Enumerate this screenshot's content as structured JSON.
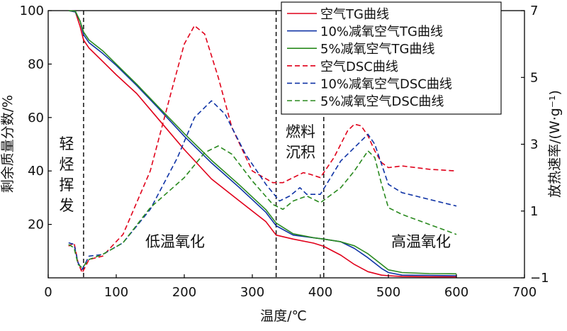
{
  "chart_data": {
    "type": "line",
    "xlabel": "温度/℃",
    "ylabel_left": "剩余质量分数/%",
    "ylabel_right": "放热速率/(W·g⁻¹)",
    "xlim": [
      0,
      700
    ],
    "ylim_left": [
      0,
      100
    ],
    "ylim_right": [
      -1,
      7
    ],
    "x_ticks": [
      0,
      100,
      200,
      300,
      400,
      500,
      600,
      700
    ],
    "y_ticks_left": [
      20,
      40,
      60,
      80,
      100
    ],
    "y_ticks_right": [
      -1,
      1,
      3,
      5,
      7
    ],
    "legend_position": "top-right",
    "vlines": [
      52,
      335,
      405
    ],
    "annotations": {
      "stage1": "轻烃挥发",
      "stage2": "低温氧化",
      "stage3": "燃料沉积",
      "stage4": "高温氧化"
    },
    "series": [
      {
        "name": "空气TG曲线",
        "axis": "left",
        "color": "#e0001a",
        "dash": false,
        "x": [
          30,
          40,
          47,
          52,
          60,
          80,
          100,
          130,
          160,
          200,
          240,
          280,
          320,
          335,
          360,
          390,
          405,
          430,
          450,
          470,
          490,
          500,
          520,
          560,
          600
        ],
        "y": [
          100,
          99.5,
          94,
          89,
          86,
          81,
          76,
          69,
          60,
          48,
          37,
          29,
          21,
          16,
          14.5,
          13,
          11.8,
          8.5,
          5,
          2.3,
          1,
          0.8,
          0.5,
          0.4,
          0.4
        ]
      },
      {
        "name": "10%减氧空气TG曲线",
        "axis": "left",
        "color": "#1034a6",
        "dash": false,
        "x": [
          30,
          40,
          47,
          52,
          60,
          80,
          100,
          130,
          160,
          200,
          240,
          280,
          320,
          335,
          360,
          390,
          405,
          430,
          450,
          470,
          490,
          500,
          520,
          560,
          600
        ],
        "y": [
          100,
          99.5,
          96,
          91,
          88,
          84,
          79.5,
          72,
          64,
          53,
          43,
          34,
          24.5,
          19.5,
          16,
          15,
          14.5,
          13.5,
          11,
          7.5,
          3.5,
          2,
          1,
          0.9,
          0.8
        ]
      },
      {
        "name": "5%减氧空气TG曲线",
        "axis": "left",
        "color": "#2a8a1f",
        "dash": false,
        "x": [
          30,
          40,
          47,
          52,
          60,
          80,
          100,
          130,
          160,
          200,
          240,
          280,
          320,
          335,
          360,
          390,
          405,
          430,
          450,
          470,
          490,
          500,
          520,
          560,
          600
        ],
        "y": [
          100,
          99.8,
          96,
          92,
          89,
          85,
          80,
          72.5,
          64.5,
          54,
          44,
          35,
          25.5,
          20.5,
          16.5,
          15,
          14.5,
          13.5,
          12,
          9,
          5,
          3,
          2,
          1.6,
          1.5
        ]
      },
      {
        "name": "空气DSC曲线",
        "axis": "right",
        "color": "#e0001a",
        "dash": true,
        "x": [
          30,
          38,
          44,
          50,
          60,
          80,
          110,
          150,
          180,
          200,
          215,
          230,
          250,
          270,
          300,
          330,
          345,
          360,
          375,
          385,
          400,
          420,
          440,
          450,
          460,
          470,
          480,
          490,
          500,
          520,
          560,
          600
        ],
        "y": [
          -0.05,
          0.05,
          -0.55,
          -0.85,
          -0.45,
          -0.35,
          0.3,
          2.2,
          4.5,
          6.0,
          6.55,
          6.3,
          5.0,
          3.5,
          2.2,
          1.85,
          1.85,
          2.0,
          2.15,
          2.1,
          2.0,
          2.6,
          3.4,
          3.6,
          3.55,
          3.25,
          2.8,
          2.45,
          2.3,
          2.35,
          2.25,
          2.2
        ]
      },
      {
        "name": "10%减氧空气DSC曲线",
        "axis": "right",
        "color": "#1034a6",
        "dash": true,
        "x": [
          30,
          38,
          44,
          50,
          60,
          80,
          110,
          150,
          190,
          215,
          240,
          260,
          290,
          320,
          340,
          355,
          370,
          380,
          400,
          430,
          450,
          470,
          480,
          490,
          500,
          520,
          560,
          600
        ],
        "y": [
          0.05,
          0,
          -0.55,
          -0.75,
          -0.35,
          -0.3,
          0.05,
          1.05,
          2.6,
          3.8,
          4.3,
          3.9,
          2.7,
          1.8,
          1.3,
          1.45,
          1.7,
          1.5,
          1.5,
          2.5,
          2.9,
          3.3,
          3.0,
          2.4,
          1.8,
          1.55,
          1.35,
          1.15
        ]
      },
      {
        "name": "5%减氧空气DSC曲线",
        "axis": "right",
        "color": "#2a8a1f",
        "dash": true,
        "x": [
          30,
          38,
          44,
          50,
          60,
          80,
          110,
          150,
          200,
          230,
          250,
          270,
          300,
          330,
          345,
          360,
          380,
          400,
          430,
          450,
          470,
          480,
          490,
          500,
          520,
          560,
          600
        ],
        "y": [
          0,
          -0.1,
          -0.6,
          -0.7,
          -0.45,
          -0.3,
          0.05,
          1.1,
          2.0,
          2.75,
          2.95,
          2.7,
          1.9,
          1.2,
          1.05,
          1.3,
          1.45,
          1.25,
          1.7,
          2.2,
          2.8,
          2.6,
          1.8,
          1.1,
          0.9,
          0.6,
          0.3
        ]
      }
    ]
  }
}
